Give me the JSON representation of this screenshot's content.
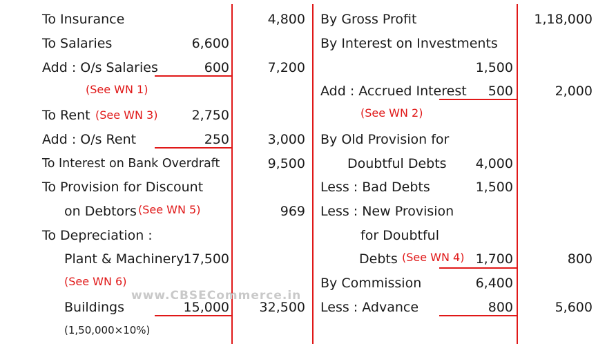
{
  "watermark": "www.CBSECommerce.in",
  "debit": {
    "insurance": {
      "label": "To Insurance",
      "amount": "4,800"
    },
    "salaries": {
      "label": "To Salaries",
      "value": "6,600"
    },
    "os_salaries": {
      "label": "Add :  O/s Salaries",
      "value": "600",
      "amount": "7,200",
      "note": "(See WN 1)"
    },
    "rent": {
      "label": "To Rent",
      "note": "(See WN 3)",
      "value": "2,750"
    },
    "os_rent": {
      "label": "Add : O/s Rent",
      "value": "250",
      "amount": "3,000"
    },
    "interest_overdraft": {
      "label": "To Interest on Bank Overdraft",
      "amount": "9,500"
    },
    "provision_discount": {
      "label": "To Provision for Discount",
      "label2": "on Debtors",
      "note": "(See WN 5)",
      "amount": "969"
    },
    "depreciation": {
      "label": "To Depreciation :"
    },
    "plant": {
      "label": "Plant & Machinery",
      "value": "17,500",
      "note": "(See WN 6)"
    },
    "buildings": {
      "label": "Buildings",
      "value": "15,000",
      "amount": "32,500",
      "calc": "(1,50,000×10%)"
    }
  },
  "credit": {
    "gross_profit": {
      "label": "By Gross Profit",
      "amount": "1,18,000"
    },
    "interest_investments": {
      "label": "By Interest on Investments",
      "value": "1,500"
    },
    "accrued_interest": {
      "label": "Add :  Accrued Interest",
      "value": "500",
      "amount": "2,000",
      "note": "(See WN 2)"
    },
    "old_provision": {
      "label": "By Old Provision for",
      "label2": "Doubtful Debts",
      "value": "4,000"
    },
    "bad_debts": {
      "label": "Less :  Bad Debts",
      "value": "1,500"
    },
    "new_provision": {
      "label": "Less :  New Provision",
      "label2": "for Doubtful",
      "label3": "Debts",
      "note": "(See WN 4)",
      "value": "1,700",
      "amount": "800"
    },
    "commission": {
      "label": "By Commission",
      "value": "6,400"
    },
    "advance": {
      "label": "Less :  Advance",
      "value": "800",
      "amount": "5,600"
    }
  }
}
